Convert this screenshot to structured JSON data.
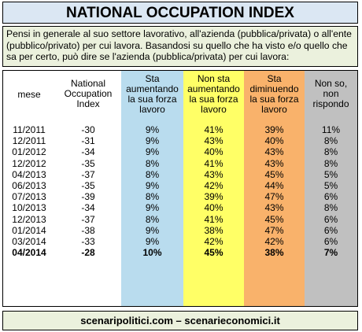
{
  "title": "NATIONAL OCCUPATION INDEX",
  "question": "Pensi in generale al suo settore lavorativo, all'azienda (pubblica/privata) o all'ente (pubblico/privato) per cui lavora.  Basandosi su quello che ha visto e/o quello che sa per certo, può dire se l'azienda (pubblica/privata) per cui lavora:",
  "footer": "scenaripolitici.com – scenarieconomici.it",
  "colors": {
    "title_bg": "#dbe7f3",
    "question_bg": "#ebf1dd",
    "col_increasing": "#b9dcee",
    "col_stable": "#ffff66",
    "col_decreasing": "#f9b26b",
    "col_dontknow": "#c0c0c0"
  },
  "chart_data": {
    "type": "table",
    "columns": [
      "mese",
      "National Occupation Index",
      "Sta aumentando la sua forza lavoro",
      "Non sta aumentando la sua forza lavoro",
      "Sta diminuendo la sua forza lavoro",
      "Non so, non rispondo"
    ],
    "rows": [
      [
        "11/2011",
        "-30",
        "9%",
        "41%",
        "39%",
        "11%"
      ],
      [
        "12/2011",
        "-31",
        "9%",
        "43%",
        "40%",
        "8%"
      ],
      [
        "01/2012",
        "-34",
        "9%",
        "40%",
        "43%",
        "8%"
      ],
      [
        "12/2012",
        "-35",
        "8%",
        "41%",
        "43%",
        "8%"
      ],
      [
        "04/2013",
        "-37",
        "8%",
        "43%",
        "45%",
        "5%"
      ],
      [
        "06/2013",
        "-35",
        "9%",
        "42%",
        "44%",
        "5%"
      ],
      [
        "07/2013",
        "-39",
        "8%",
        "39%",
        "47%",
        "6%"
      ],
      [
        "10/2013",
        "-34",
        "9%",
        "40%",
        "43%",
        "8%"
      ],
      [
        "12/2013",
        "-37",
        "8%",
        "41%",
        "45%",
        "6%"
      ],
      [
        "01/2014",
        "-38",
        "9%",
        "38%",
        "47%",
        "6%"
      ],
      [
        "03/2014",
        "-33",
        "9%",
        "42%",
        "42%",
        "6%"
      ],
      [
        "04/2014",
        "-28",
        "10%",
        "45%",
        "38%",
        "7%"
      ]
    ],
    "highlight_last_row": true
  }
}
